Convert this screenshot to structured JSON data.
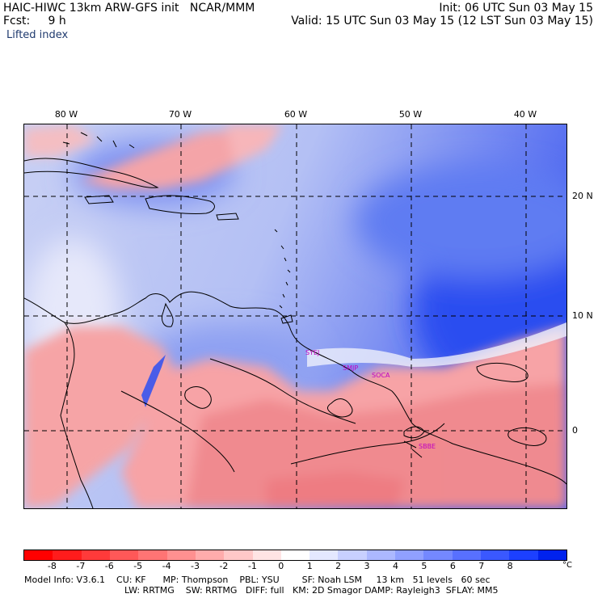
{
  "header": {
    "model_line": "HAIC-HIWC 13km ARW-GFS init   NCAR/MMM",
    "forecast_line": "Fcst:     9 h",
    "init_line": "Init: 06 UTC Sun 03 May 15",
    "valid_line": "Valid: 15 UTC Sun 03 May 15 (12 LST Sun 03 May 15)",
    "field_name": "Lifted index"
  },
  "map": {
    "lon_labels": [
      "80 W",
      "70 W",
      "60 W",
      "50 W",
      "40 W"
    ],
    "lat_labels": [
      "20 N",
      "10 N",
      "0"
    ],
    "station_labels": [
      "SYEJ",
      "SMJP",
      "SOCA",
      "SBBE"
    ],
    "colors": {
      "ocean_frame": "#ffffff",
      "coastline": "#000000",
      "gridline": "#000000",
      "station": "#c000c0"
    }
  },
  "colorbar": {
    "tick_labels": [
      "-8",
      "-7",
      "-6",
      "-5",
      "-4",
      "-3",
      "-2",
      "-1",
      "0",
      "1",
      "2",
      "3",
      "4",
      "5",
      "6",
      "7",
      "8"
    ],
    "unit": "°C",
    "colors": [
      "#ff0000",
      "#ff1c1c",
      "#ff3a3a",
      "#ff5858",
      "#ff7474",
      "#ff9090",
      "#ffacac",
      "#ffc8c8",
      "#ffe4e4",
      "#ffffff",
      "#e4e8ff",
      "#c8d0ff",
      "#acb8ff",
      "#90a0ff",
      "#7488ff",
      "#5870ff",
      "#3a58ff",
      "#1c40ff",
      "#0022ee"
    ]
  },
  "footer": {
    "line1": "Model Info: V3.6.1    CU: KF      MP: Thompson    PBL: YSU        SF: Noah LSM     13 km   51 levels   60 sec",
    "line2": "LW: RRTMG    SW: RRTMG   DIFF: full   KM: 2D Smagor DAMP: Rayleigh3  SFLAY: MM5"
  }
}
